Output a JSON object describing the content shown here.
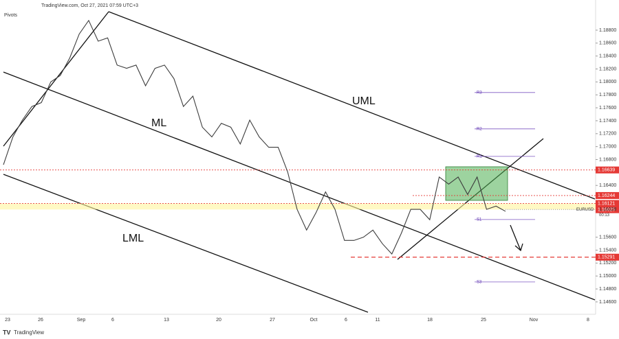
{
  "header": {
    "source": "TradingView.com, Oct 27, 2021 07:59 UTC+3",
    "indicator": "Pivots"
  },
  "chart_data": {
    "type": "line",
    "symbol": "EURUSD",
    "color": "#3c3c3c",
    "values": [
      1.1672,
      1.1715,
      1.1741,
      1.1762,
      1.1768,
      1.18,
      1.181,
      1.1837,
      1.1874,
      1.1895,
      1.1863,
      1.1868,
      1.1826,
      1.1821,
      1.1826,
      1.1794,
      1.1821,
      1.1826,
      1.1805,
      1.1762,
      1.1778,
      1.173,
      1.1715,
      1.1736,
      1.173,
      1.1704,
      1.1741,
      1.1715,
      1.1699,
      1.1699,
      1.1661,
      1.1603,
      1.1571,
      1.1598,
      1.163,
      1.1603,
      1.1555,
      1.1555,
      1.156,
      1.1571,
      1.155,
      1.1534,
      1.1566,
      1.1603,
      1.1603,
      1.1587,
      1.1653,
      1.1642,
      1.1653,
      1.1626,
      1.1653,
      1.1603,
      1.1608,
      1.16
    ],
    "ylim": [
      1.1444,
      1.1916
    ],
    "yticks": [
      {
        "value": 1.188,
        "label": "1.18800"
      },
      {
        "value": 1.186,
        "label": "1.18600"
      },
      {
        "value": 1.184,
        "label": "1.18400"
      },
      {
        "value": 1.182,
        "label": "1.18200"
      },
      {
        "value": 1.18,
        "label": "1.18000"
      },
      {
        "value": 1.178,
        "label": "1.17800"
      },
      {
        "value": 1.176,
        "label": "1.17600"
      },
      {
        "value": 1.174,
        "label": "1.17400"
      },
      {
        "value": 1.172,
        "label": "1.17200"
      },
      {
        "value": 1.17,
        "label": "1.17000"
      },
      {
        "value": 1.168,
        "label": "1.16800"
      },
      {
        "value": 1.164,
        "label": "1.16400"
      },
      {
        "value": 1.156,
        "label": "1.15600"
      },
      {
        "value": 1.154,
        "label": "1.15400"
      },
      {
        "value": 1.152,
        "label": "1.15200"
      },
      {
        "value": 1.15,
        "label": "1.15000"
      },
      {
        "value": 1.148,
        "label": "1.14800"
      },
      {
        "value": 1.146,
        "label": "1.14600"
      }
    ],
    "x_labels": [
      "23",
      "26",
      "Sep",
      "6",
      "13",
      "20",
      "27",
      "Oct",
      "6",
      "11",
      "18",
      "25",
      "Nov",
      "8"
    ],
    "levels": [
      {
        "value": 1.16639,
        "color": "#e53935"
      },
      {
        "value": 1.16244,
        "color": "#e53935"
      },
      {
        "value": 1.16121,
        "color": "#e53935"
      },
      {
        "value": 1.16025,
        "color": "#e53935"
      },
      {
        "value": 1.15291,
        "color": "#e53935"
      }
    ],
    "last_price": {
      "value": 1.16028,
      "countdown": "00:13"
    },
    "pivots": [
      {
        "name": "R3",
        "value": 1.17836
      },
      {
        "name": "R2",
        "value": 1.17274
      },
      {
        "name": "R1",
        "value": 1.16849
      },
      {
        "name": "S1",
        "value": 1.15873
      },
      {
        "name": "S3",
        "value": 1.14908
      }
    ],
    "annotations": [
      "UML",
      "ML",
      "LML"
    ]
  },
  "footer": {
    "brand": "TradingView"
  }
}
